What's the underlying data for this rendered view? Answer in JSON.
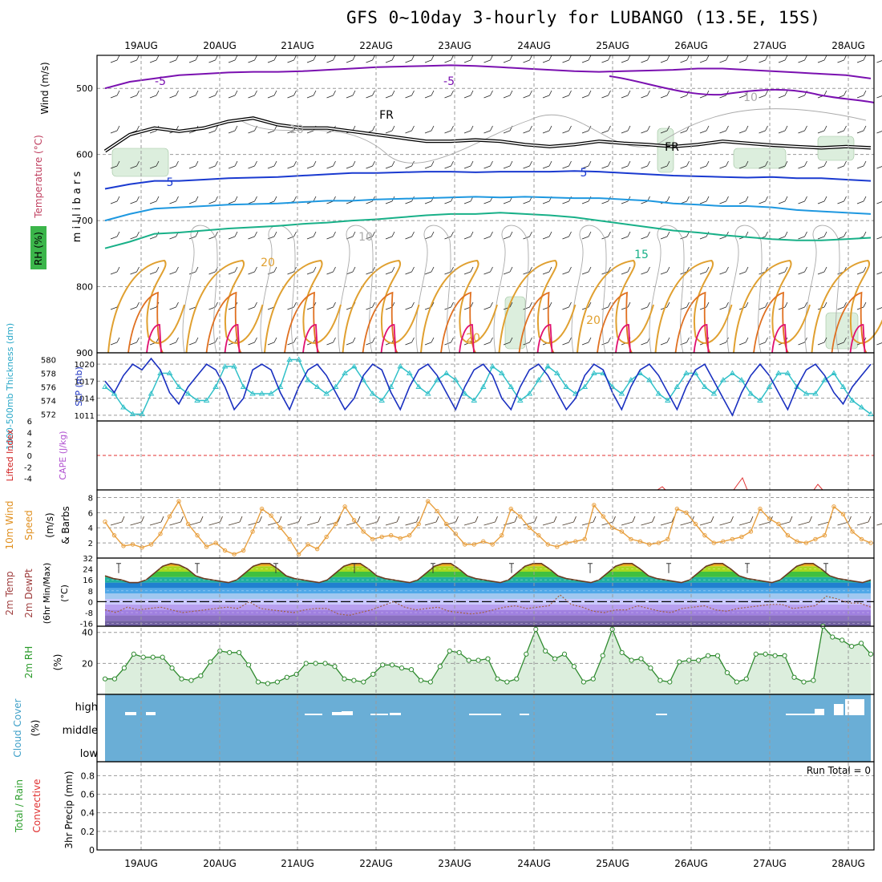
{
  "title": "GFS 0~10day 3-hourly for LUBANGO (13.5E, 15S)",
  "dates": [
    "19AUG",
    "20AUG",
    "21AUG",
    "22AUG",
    "23AUG",
    "24AUG",
    "25AUG",
    "26AUG",
    "27AUG",
    "28AUG"
  ],
  "run_total_label": "Run Total = 0",
  "colors": {
    "frame": "#000000",
    "grid": "#9a9a9a",
    "purple": "#7a10b0",
    "blue": "#1a3ad0",
    "lightblue": "#1e98e0",
    "teal": "#18b088",
    "orange": "#e0a030",
    "darkorange": "#e07020",
    "magenta": "#e01070",
    "cyan": "#30c0c8",
    "slpblue": "#1a30c0",
    "rhfill": "#dceedd",
    "rhline": "#2e8a2e",
    "cloud": "#6aaed6",
    "windorange": "#e8a040",
    "red": "#e03030"
  },
  "chart_data": [
    {
      "type": "line",
      "name": "upper-air cross-section",
      "ylabel": "m i l l i b a r s",
      "axis_labels": [
        "Wind (m/s)",
        "Temperature (°C)",
        "RH (%)"
      ],
      "yticks": [
        500,
        600,
        700,
        800,
        900
      ],
      "ylim": [
        450,
        900
      ],
      "contour_labels": [
        "-5",
        "-5",
        "5",
        "10",
        "10",
        "FR",
        "FR",
        "5",
        "10",
        "20",
        "15",
        "20",
        "20"
      ],
      "series": [
        {
          "values": [
            500,
            490,
            485,
            480,
            478,
            476,
            475,
            475,
            474,
            472,
            470,
            468,
            467,
            466,
            465,
            466,
            468,
            470,
            472,
            474,
            475,
            474,
            473,
            472,
            470,
            470,
            472,
            474,
            476,
            478,
            480,
            485
          ]
        },
        {
          "values": [
            595,
            570,
            560,
            565,
            560,
            550,
            545,
            555,
            560,
            560,
            565,
            570,
            575,
            580,
            580,
            578,
            580,
            585,
            588,
            585,
            580,
            583,
            585,
            588,
            585,
            580,
            583,
            586,
            588,
            590,
            588,
            590
          ]
        },
        {
          "values": [
            652,
            645,
            640,
            640,
            638,
            636,
            635,
            634,
            632,
            630,
            628,
            628,
            627,
            626,
            626,
            627,
            626,
            626,
            626,
            625,
            626,
            628,
            630,
            632,
            633,
            634,
            635,
            634,
            636,
            636,
            638,
            640
          ]
        },
        {
          "values": [
            700,
            690,
            682,
            680,
            678,
            676,
            675,
            674,
            672,
            670,
            670,
            668,
            667,
            666,
            665,
            664,
            665,
            664,
            665,
            666,
            666,
            668,
            670,
            674,
            676,
            678,
            678,
            680,
            684,
            686,
            688,
            690
          ]
        },
        {
          "values": [
            742,
            732,
            720,
            718,
            715,
            712,
            710,
            708,
            705,
            703,
            700,
            698,
            695,
            692,
            690,
            690,
            688,
            690,
            692,
            695,
            700,
            705,
            710,
            715,
            718,
            722,
            725,
            728,
            730,
            730,
            728,
            726
          ]
        }
      ]
    },
    {
      "type": "line",
      "name": "1000-500mb thickness and SLP",
      "axis_labels": [
        "1000-500mb Thickness (dm)",
        "SLP (mb)"
      ],
      "thickness_ticks": [
        572,
        574,
        576,
        578,
        580
      ],
      "slp_ticks": [
        1011,
        1014,
        1017,
        1020
      ],
      "series": [
        {
          "name": "Thickness",
          "values": [
            576,
            575,
            573,
            572,
            572,
            575,
            578,
            578,
            576,
            575,
            574,
            574,
            576,
            579,
            579,
            576,
            575,
            575,
            575,
            576,
            580,
            580,
            577,
            576,
            575,
            576,
            578,
            579,
            577,
            575,
            574,
            576,
            579,
            578,
            576,
            575,
            577,
            578,
            577,
            575,
            574,
            576,
            579,
            578,
            576,
            574,
            575,
            577,
            579,
            578,
            576,
            575,
            576,
            578,
            578,
            576,
            575,
            577,
            578,
            577,
            575,
            574,
            576,
            578,
            578,
            576,
            575,
            577,
            578,
            577,
            575,
            574,
            576,
            578,
            578,
            576,
            575,
            575,
            577,
            578,
            576,
            574,
            573,
            572
          ]
        },
        {
          "name": "SLP",
          "values": [
            1017,
            1015,
            1018,
            1020,
            1019,
            1021,
            1019,
            1015,
            1013,
            1016,
            1018,
            1020,
            1019,
            1016,
            1012,
            1014,
            1019,
            1020,
            1019,
            1015,
            1012,
            1016,
            1019,
            1020,
            1018,
            1015,
            1012,
            1014,
            1018,
            1020,
            1019,
            1015,
            1012,
            1016,
            1019,
            1020,
            1018,
            1015,
            1012,
            1016,
            1019,
            1020,
            1018,
            1014,
            1012,
            1016,
            1019,
            1020,
            1018,
            1015,
            1012,
            1014,
            1018,
            1020,
            1019,
            1015,
            1012,
            1016,
            1019,
            1020,
            1018,
            1015,
            1012,
            1016,
            1019,
            1020,
            1017,
            1014,
            1011,
            1015,
            1018,
            1020,
            1018,
            1015,
            1012,
            1016,
            1019,
            1020,
            1018,
            1015,
            1013,
            1016,
            1018,
            1020
          ]
        }
      ]
    },
    {
      "type": "line",
      "name": "Lifted Index and CAPE",
      "axis_labels": [
        "Lifted Index",
        "CAPE (J/kg)"
      ],
      "yticks": [
        -4,
        -2,
        0,
        2,
        4,
        6
      ],
      "ylim": [
        -6,
        6
      ]
    },
    {
      "type": "line",
      "name": "10m wind",
      "axis_labels": [
        "10m Wind",
        "Speed",
        "& Barbs",
        "(m/s)"
      ],
      "yticks": [
        2,
        4,
        6,
        8
      ],
      "ylim": [
        0,
        9
      ],
      "series": [
        {
          "name": "Speed",
          "values": [
            4.8,
            3.0,
            1.6,
            1.8,
            1.4,
            1.8,
            3.2,
            5.5,
            7.5,
            4.5,
            3.0,
            1.5,
            2.0,
            1.0,
            0.5,
            1.0,
            3.5,
            6.5,
            5.6,
            4.0,
            2.5,
            0.5,
            1.8,
            1.2,
            2.8,
            4.5,
            6.8,
            5.0,
            3.5,
            2.5,
            2.8,
            3.0,
            2.6,
            3.0,
            4.5,
            7.5,
            6.2,
            4.5,
            3.2,
            1.8,
            1.8,
            2.2,
            1.8,
            3.0,
            6.5,
            5.5,
            4.0,
            3.0,
            1.8,
            1.5,
            2.0,
            2.2,
            2.5,
            7.0,
            5.5,
            4.0,
            3.5,
            2.5,
            2.2,
            1.8,
            2.0,
            2.5,
            6.5,
            6.0,
            4.5,
            3.0,
            2.0,
            2.2,
            2.5,
            2.8,
            3.5,
            6.5,
            5.2,
            4.5,
            3.0,
            2.2,
            2.0,
            2.5,
            3.0,
            6.8,
            5.8,
            3.5,
            2.5,
            2.0
          ]
        }
      ]
    },
    {
      "type": "area",
      "name": "2m temp/dewpt",
      "axis_labels": [
        "2m Temp",
        "2m DewPt",
        "(6hr Min/Max)",
        "(°C)"
      ],
      "yticks": [
        -16,
        -8,
        0,
        8,
        16,
        24,
        32
      ],
      "ylim": [
        -18,
        32
      ],
      "series": [
        {
          "name": "Temp",
          "values": [
            19,
            17,
            16,
            14,
            14,
            16,
            21,
            26,
            28,
            27,
            24,
            19,
            17,
            16,
            15,
            14,
            16,
            21,
            26,
            28,
            28,
            24,
            19,
            17,
            16,
            15,
            14,
            16,
            21,
            26,
            28,
            28,
            24,
            19,
            17,
            16,
            15,
            14,
            16,
            21,
            26,
            28,
            28,
            24,
            19,
            17,
            16,
            15,
            14,
            16,
            21,
            26,
            28,
            28,
            24,
            19,
            17,
            16,
            15,
            14,
            16,
            21,
            26,
            28,
            28,
            24,
            19,
            17,
            16,
            15,
            14,
            16,
            21,
            26,
            28,
            28,
            24,
            19,
            17,
            16,
            15,
            14,
            16,
            21,
            26,
            28,
            28,
            24,
            19,
            17,
            16,
            15,
            14,
            16
          ]
        },
        {
          "name": "DewPt",
          "values": [
            -6,
            -8,
            -4,
            -6,
            -5,
            -4,
            -6,
            -8,
            -7,
            -6,
            -5,
            -4,
            -5,
            0,
            -5,
            -6,
            -7,
            -8,
            -6,
            -5,
            -5,
            -9,
            -10,
            -8,
            -6,
            -3,
            0,
            -4,
            -6,
            -5,
            -4,
            -7,
            -8,
            -9,
            -8,
            -6,
            -4,
            -3,
            -5,
            -4,
            -3,
            5,
            -2,
            -4,
            -7,
            -8,
            -6,
            -6,
            -3,
            -5,
            -7,
            -8,
            -5,
            -4,
            -3,
            -6,
            -7,
            -5,
            -4,
            -3,
            -2,
            -2,
            -5,
            -4,
            -3,
            4,
            2,
            -1,
            -1,
            -4
          ]
        }
      ]
    },
    {
      "type": "area",
      "name": "2m RH",
      "axis_labels": [
        "2m RH",
        "(%)"
      ],
      "yticks": [
        20,
        40
      ],
      "ylim": [
        0,
        44
      ],
      "series": [
        {
          "name": "RH",
          "values": [
            10,
            10,
            17,
            26,
            24,
            24,
            24,
            17,
            10,
            9,
            12,
            21,
            28,
            27,
            27,
            19,
            8,
            7,
            8,
            11,
            13,
            20,
            20,
            20,
            18,
            10,
            9,
            8,
            13,
            19,
            19,
            17,
            16,
            9,
            8,
            18,
            28,
            27,
            22,
            22,
            23,
            10,
            8,
            10,
            26,
            42,
            28,
            23,
            26,
            18,
            8,
            10,
            25,
            42,
            27,
            22,
            23,
            17,
            9,
            8,
            21,
            22,
            22,
            25,
            25,
            14,
            8,
            10,
            26,
            26,
            25,
            25,
            11,
            8,
            9,
            44,
            37,
            35,
            31,
            33,
            26
          ]
        }
      ]
    },
    {
      "type": "bar",
      "name": "Cloud Cover",
      "axis_labels": [
        "Cloud Cover",
        "(%)"
      ],
      "level_labels": [
        "high",
        "middle",
        "low"
      ]
    },
    {
      "type": "line",
      "name": "3hr Precip",
      "axis_labels": [
        "Total / Rain",
        "Convective",
        "3hr Precip (mm)"
      ],
      "yticks": [
        0,
        0.2,
        0.4,
        0.6,
        0.8
      ],
      "ylim": [
        0,
        0.95
      ]
    }
  ]
}
